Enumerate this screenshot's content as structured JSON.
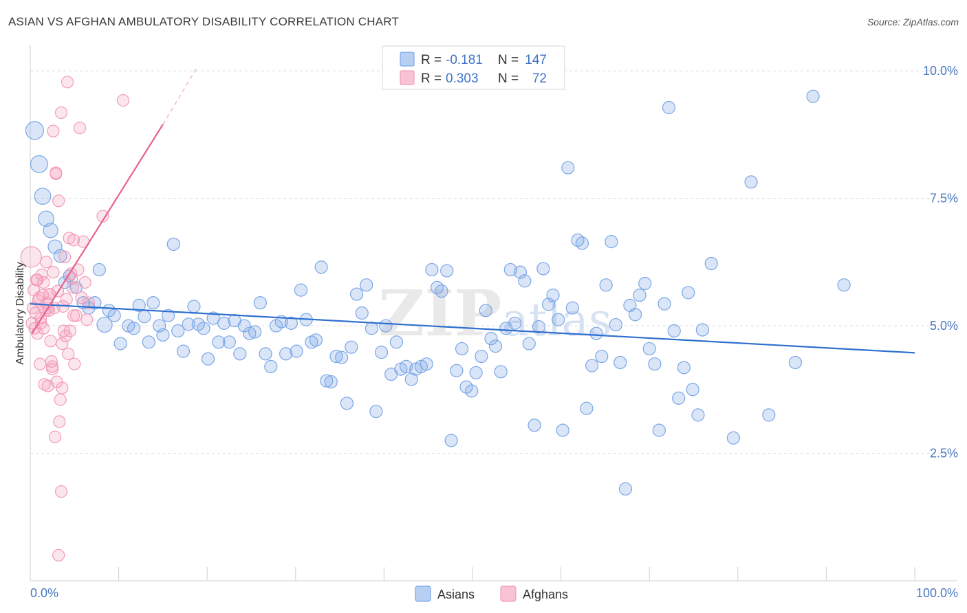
{
  "header": {
    "title": "ASIAN VS AFGHAN AMBULATORY DISABILITY CORRELATION CHART",
    "source": "Source: ZipAtlas.com"
  },
  "chart_data": {
    "type": "scatter",
    "title": "ASIAN VS AFGHAN AMBULATORY DISABILITY CORRELATION CHART",
    "ylabel": "Ambulatory Disability",
    "xlabel": "",
    "xlim": [
      0,
      100
    ],
    "ylim": [
      0,
      10.5
    ],
    "x_tick_labels": [
      "0.0%",
      "100.0%"
    ],
    "y_ticks": [
      2.5,
      5.0,
      7.5,
      10.0
    ],
    "y_tick_labels": [
      "2.5%",
      "5.0%",
      "7.5%",
      "10.0%"
    ],
    "grid": true,
    "watermark": "ZIPatlas",
    "legend": {
      "placement": "top-center",
      "rows": [
        {
          "r_label": "R = ",
          "r_value": "-0.181",
          "n_label": "N = ",
          "n_value": "147"
        },
        {
          "r_label": "R = ",
          "r_value": "0.303",
          "n_label": "N = ",
          "n_value": "72"
        }
      ]
    },
    "series": [
      {
        "name": "Asians",
        "color": "#7aa6e6",
        "line_color": "#2f6fcf",
        "trend": {
          "x": [
            0,
            100
          ],
          "y": [
            5.43,
            4.47
          ]
        },
        "points": [
          [
            0.5,
            8.83
          ],
          [
            1.0,
            8.17
          ],
          [
            1.4,
            7.54
          ],
          [
            1.8,
            7.1
          ],
          [
            2.3,
            6.87
          ],
          [
            2.8,
            6.55
          ],
          [
            3.4,
            6.37
          ],
          [
            3.9,
            5.85
          ],
          [
            4.4,
            5.98
          ],
          [
            5.2,
            5.75
          ],
          [
            6.0,
            5.45
          ],
          [
            6.6,
            5.35
          ],
          [
            7.3,
            5.45
          ],
          [
            7.8,
            6.1
          ],
          [
            8.4,
            5.02
          ],
          [
            8.9,
            5.3
          ],
          [
            9.5,
            5.2
          ],
          [
            10.2,
            4.65
          ],
          [
            11.1,
            5.0
          ],
          [
            11.7,
            4.95
          ],
          [
            12.3,
            5.4
          ],
          [
            12.9,
            5.18
          ],
          [
            13.4,
            4.68
          ],
          [
            13.9,
            5.45
          ],
          [
            14.6,
            5.0
          ],
          [
            15.0,
            4.82
          ],
          [
            15.6,
            5.2
          ],
          [
            16.2,
            6.6
          ],
          [
            16.7,
            4.9
          ],
          [
            17.3,
            4.5
          ],
          [
            17.9,
            5.03
          ],
          [
            18.5,
            5.38
          ],
          [
            19.0,
            5.03
          ],
          [
            19.6,
            4.95
          ],
          [
            20.1,
            4.35
          ],
          [
            20.7,
            5.15
          ],
          [
            21.3,
            4.68
          ],
          [
            21.9,
            5.05
          ],
          [
            22.5,
            4.68
          ],
          [
            23.1,
            5.1
          ],
          [
            23.7,
            4.45
          ],
          [
            24.2,
            5.0
          ],
          [
            24.8,
            4.85
          ],
          [
            25.4,
            4.88
          ],
          [
            26.0,
            5.45
          ],
          [
            26.6,
            4.45
          ],
          [
            27.2,
            4.2
          ],
          [
            27.8,
            5.0
          ],
          [
            28.4,
            5.08
          ],
          [
            28.9,
            4.45
          ],
          [
            29.5,
            5.05
          ],
          [
            30.1,
            4.5
          ],
          [
            30.6,
            5.7
          ],
          [
            31.2,
            5.12
          ],
          [
            31.8,
            4.68
          ],
          [
            32.3,
            4.72
          ],
          [
            32.9,
            6.15
          ],
          [
            33.5,
            3.92
          ],
          [
            34.0,
            3.9
          ],
          [
            34.6,
            4.4
          ],
          [
            35.2,
            4.38
          ],
          [
            35.8,
            3.48
          ],
          [
            36.3,
            4.58
          ],
          [
            36.9,
            5.62
          ],
          [
            37.5,
            5.25
          ],
          [
            38.0,
            5.8
          ],
          [
            38.6,
            4.95
          ],
          [
            39.1,
            3.32
          ],
          [
            39.7,
            4.48
          ],
          [
            40.2,
            5.0
          ],
          [
            40.8,
            4.05
          ],
          [
            41.4,
            4.68
          ],
          [
            41.9,
            4.15
          ],
          [
            42.5,
            4.2
          ],
          [
            43.1,
            3.95
          ],
          [
            43.6,
            4.15
          ],
          [
            44.2,
            4.2
          ],
          [
            44.8,
            4.25
          ],
          [
            45.4,
            6.1
          ],
          [
            46.0,
            5.75
          ],
          [
            46.5,
            5.68
          ],
          [
            47.1,
            6.08
          ],
          [
            47.6,
            2.75
          ],
          [
            48.2,
            4.12
          ],
          [
            48.8,
            4.55
          ],
          [
            49.3,
            3.8
          ],
          [
            49.9,
            3.72
          ],
          [
            50.4,
            4.08
          ],
          [
            51.0,
            4.4
          ],
          [
            51.5,
            5.3
          ],
          [
            52.1,
            4.75
          ],
          [
            52.6,
            4.6
          ],
          [
            53.2,
            4.1
          ],
          [
            53.8,
            4.95
          ],
          [
            54.3,
            6.1
          ],
          [
            54.8,
            5.05
          ],
          [
            55.4,
            6.05
          ],
          [
            55.9,
            5.88
          ],
          [
            56.4,
            4.65
          ],
          [
            57.0,
            3.05
          ],
          [
            57.5,
            4.98
          ],
          [
            58.0,
            6.12
          ],
          [
            58.6,
            5.42
          ],
          [
            59.1,
            5.6
          ],
          [
            59.7,
            5.12
          ],
          [
            60.2,
            2.95
          ],
          [
            60.8,
            8.1
          ],
          [
            61.3,
            5.35
          ],
          [
            61.9,
            6.68
          ],
          [
            62.4,
            6.62
          ],
          [
            62.9,
            3.38
          ],
          [
            63.5,
            4.22
          ],
          [
            64.0,
            4.85
          ],
          [
            64.6,
            4.4
          ],
          [
            65.1,
            5.8
          ],
          [
            65.7,
            6.65
          ],
          [
            66.2,
            5.02
          ],
          [
            66.7,
            4.28
          ],
          [
            67.3,
            1.8
          ],
          [
            67.8,
            5.4
          ],
          [
            68.4,
            5.22
          ],
          [
            68.9,
            5.6
          ],
          [
            69.5,
            5.83
          ],
          [
            70.0,
            4.55
          ],
          [
            70.6,
            4.25
          ],
          [
            71.1,
            2.95
          ],
          [
            71.7,
            5.43
          ],
          [
            72.2,
            9.28
          ],
          [
            72.8,
            4.9
          ],
          [
            73.3,
            3.58
          ],
          [
            73.9,
            4.18
          ],
          [
            74.4,
            5.65
          ],
          [
            74.9,
            3.75
          ],
          [
            75.5,
            3.25
          ],
          [
            76.0,
            4.92
          ],
          [
            77.0,
            6.22
          ],
          [
            79.5,
            2.8
          ],
          [
            81.5,
            7.82
          ],
          [
            83.5,
            3.25
          ],
          [
            86.5,
            4.28
          ],
          [
            88.5,
            9.5
          ],
          [
            92.0,
            5.8
          ]
        ]
      },
      {
        "name": "Afghans",
        "color": "#f29bb8",
        "line_color": "#e8608e",
        "trend": {
          "x": [
            0.2,
            15.0
          ],
          "y": [
            4.85,
            8.95
          ]
        },
        "trend_dashed": {
          "x": [
            15.0,
            18.8
          ],
          "y": [
            8.95,
            10.05
          ]
        },
        "points": [
          [
            0.1,
            6.35
          ],
          [
            0.2,
            5.05
          ],
          [
            0.3,
            5.35
          ],
          [
            0.4,
            5.7
          ],
          [
            0.5,
            4.95
          ],
          [
            0.6,
            5.25
          ],
          [
            0.7,
            5.9
          ],
          [
            0.8,
            4.85
          ],
          [
            0.9,
            5.5
          ],
          [
            1.0,
            5.55
          ],
          [
            1.1,
            4.25
          ],
          [
            1.2,
            5.15
          ],
          [
            1.3,
            6.0
          ],
          [
            1.4,
            5.6
          ],
          [
            1.5,
            5.85
          ],
          [
            1.6,
            3.85
          ],
          [
            1.7,
            5.3
          ],
          [
            1.8,
            6.25
          ],
          [
            1.9,
            5.45
          ],
          [
            2.0,
            3.82
          ],
          [
            2.1,
            5.3
          ],
          [
            2.2,
            5.62
          ],
          [
            2.3,
            4.7
          ],
          [
            2.4,
            4.3
          ],
          [
            2.5,
            4.2
          ],
          [
            2.6,
            8.82
          ],
          [
            2.7,
            5.35
          ],
          [
            2.8,
            2.82
          ],
          [
            2.9,
            8.0
          ],
          [
            3.0,
            3.9
          ],
          [
            3.1,
            5.68
          ],
          [
            3.2,
            7.45
          ],
          [
            3.3,
            3.12
          ],
          [
            3.4,
            3.55
          ],
          [
            3.5,
            9.18
          ],
          [
            3.6,
            3.78
          ],
          [
            3.7,
            5.38
          ],
          [
            3.8,
            4.9
          ],
          [
            3.9,
            6.35
          ],
          [
            4.0,
            4.8
          ],
          [
            4.1,
            5.52
          ],
          [
            4.2,
            9.78
          ],
          [
            4.3,
            4.45
          ],
          [
            4.4,
            6.72
          ],
          [
            4.5,
            4.9
          ],
          [
            4.6,
            6.02
          ],
          [
            4.7,
            5.92
          ],
          [
            4.8,
            5.75
          ],
          [
            4.9,
            6.68
          ],
          [
            5.0,
            4.25
          ],
          [
            5.2,
            5.2
          ],
          [
            5.4,
            6.1
          ],
          [
            5.6,
            8.88
          ],
          [
            5.8,
            5.55
          ],
          [
            6.0,
            6.65
          ],
          [
            6.2,
            5.85
          ],
          [
            6.4,
            5.12
          ],
          [
            6.6,
            5.45
          ],
          [
            2.2,
            5.62
          ],
          [
            2.9,
            7.98
          ],
          [
            1.5,
            4.95
          ],
          [
            2.5,
            4.15
          ],
          [
            3.2,
            0.5
          ],
          [
            3.5,
            1.75
          ],
          [
            2.0,
            5.35
          ],
          [
            8.2,
            7.15
          ],
          [
            10.5,
            9.42
          ],
          [
            1.2,
            5.05
          ],
          [
            0.8,
            5.9
          ],
          [
            2.6,
            6.05
          ],
          [
            3.6,
            4.65
          ],
          [
            4.9,
            5.2
          ]
        ]
      }
    ]
  },
  "bottom_legend": [
    {
      "label": "Asians",
      "color": "#7aa6e6"
    },
    {
      "label": "Afghans",
      "color": "#f29bb8"
    }
  ]
}
